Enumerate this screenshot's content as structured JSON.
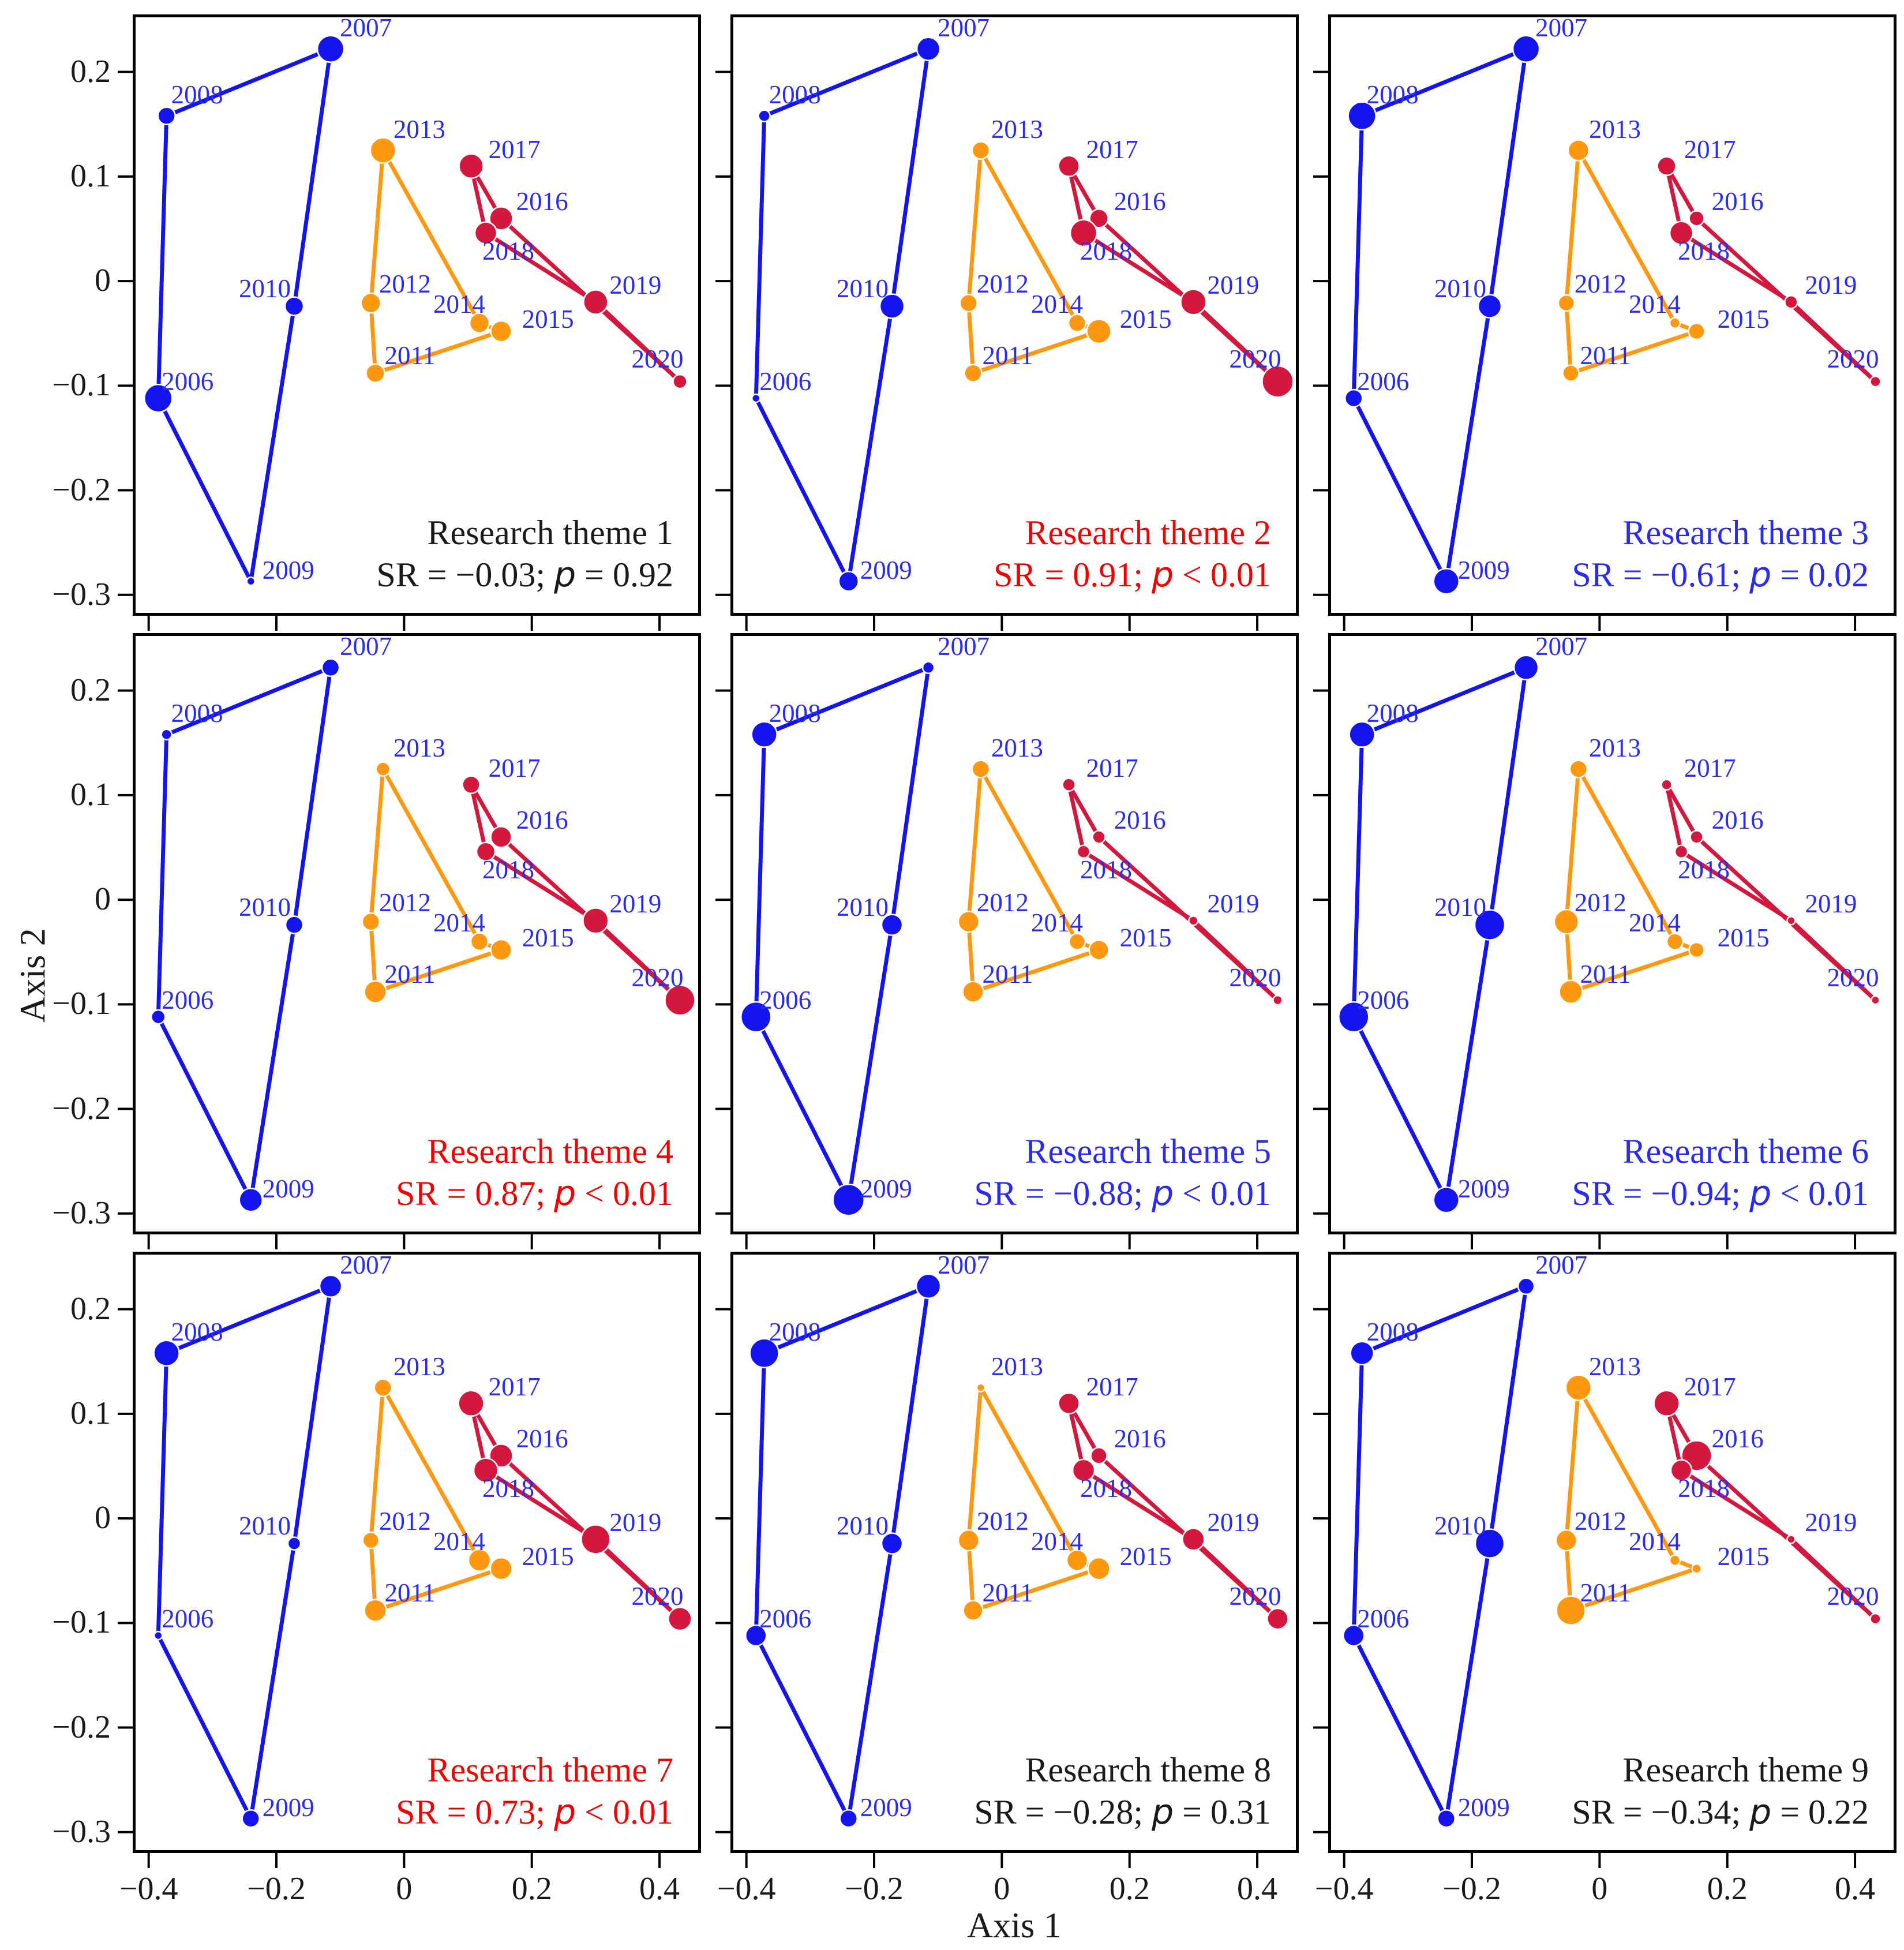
{
  "figure": {
    "xlabel": "Axis 1",
    "ylabel": "Axis 2"
  },
  "chart_data": {
    "type": "scatter",
    "xlabel": "Axis 1",
    "ylabel": "Axis 2",
    "xlim": [
      -0.425,
      0.465
    ],
    "ylim": [
      -0.32,
      0.255
    ],
    "grid": false,
    "xticks": [
      {
        "v": -0.4,
        "label": "−0.4"
      },
      {
        "v": -0.2,
        "label": "−0.2"
      },
      {
        "v": 0,
        "label": "0"
      },
      {
        "v": 0.2,
        "label": "0.2"
      },
      {
        "v": 0.4,
        "label": "0.4"
      }
    ],
    "yticks": [
      {
        "v": 0.2,
        "label": "0.2"
      },
      {
        "v": 0.1,
        "label": "0.1"
      },
      {
        "v": 0,
        "label": "0"
      },
      {
        "v": -0.1,
        "label": "−0.1"
      },
      {
        "v": -0.2,
        "label": "−0.2"
      },
      {
        "v": -0.3,
        "label": "−0.3"
      }
    ],
    "years": [
      "2006",
      "2007",
      "2008",
      "2009",
      "2010",
      "2011",
      "2012",
      "2013",
      "2014",
      "2015",
      "2016",
      "2017",
      "2018",
      "2019",
      "2020"
    ],
    "points": {
      "2006": {
        "x": -0.385,
        "y": -0.112,
        "group": "blue"
      },
      "2007": {
        "x": -0.115,
        "y": 0.222,
        "group": "blue"
      },
      "2008": {
        "x": -0.372,
        "y": 0.158,
        "group": "blue"
      },
      "2009": {
        "x": -0.24,
        "y": -0.287,
        "group": "blue"
      },
      "2010": {
        "x": -0.172,
        "y": -0.024,
        "group": "blue"
      },
      "2011": {
        "x": -0.045,
        "y": -0.088,
        "group": "orange"
      },
      "2012": {
        "x": -0.052,
        "y": -0.021,
        "group": "orange"
      },
      "2013": {
        "x": -0.033,
        "y": 0.125,
        "group": "orange"
      },
      "2014": {
        "x": 0.118,
        "y": -0.04,
        "group": "orange"
      },
      "2015": {
        "x": 0.152,
        "y": -0.048,
        "group": "orange"
      },
      "2016": {
        "x": 0.152,
        "y": 0.06,
        "group": "red"
      },
      "2017": {
        "x": 0.105,
        "y": 0.11,
        "group": "red"
      },
      "2018": {
        "x": 0.128,
        "y": 0.046,
        "group": "red"
      },
      "2019": {
        "x": 0.3,
        "y": -0.02,
        "group": "red"
      },
      "2020": {
        "x": 0.432,
        "y": -0.096,
        "group": "red"
      }
    },
    "edges": [
      [
        "2007",
        "2008"
      ],
      [
        "2008",
        "2006"
      ],
      [
        "2006",
        "2009"
      ],
      [
        "2009",
        "2010"
      ],
      [
        "2010",
        "2007"
      ],
      [
        "2011",
        "2012"
      ],
      [
        "2012",
        "2013"
      ],
      [
        "2013",
        "2014"
      ],
      [
        "2014",
        "2015"
      ],
      [
        "2015",
        "2011"
      ],
      [
        "2016",
        "2017"
      ],
      [
        "2017",
        "2018"
      ],
      [
        "2018",
        "2019"
      ],
      [
        "2019",
        "2020"
      ],
      [
        "2020",
        "2016"
      ]
    ],
    "group_colors": {
      "blue": "#1414ee",
      "orange": "#ff9811",
      "red": "#d4173c"
    },
    "year_label_color": "#2a2af5",
    "panels": [
      {
        "title": "Research theme 1",
        "sr_text": "SR = −0.03; ",
        "p_symbol": "p",
        "p_text": " = 0.92",
        "color": "#1a1a1a",
        "sizes": {
          "2006": 48,
          "2007": 46,
          "2008": 30,
          "2009": 14,
          "2010": 32,
          "2011": 32,
          "2012": 34,
          "2013": 44,
          "2014": 34,
          "2015": 36,
          "2016": 40,
          "2017": 42,
          "2018": 38,
          "2019": 42,
          "2020": 24
        }
      },
      {
        "title": "Research theme 2",
        "sr_text": "SR = 0.91; ",
        "p_symbol": "p",
        "p_text": " < 0.01",
        "color": "#f40000",
        "sizes": {
          "2006": 14,
          "2007": 40,
          "2008": 20,
          "2009": 34,
          "2010": 42,
          "2011": 30,
          "2012": 30,
          "2013": 30,
          "2014": 30,
          "2015": 42,
          "2016": 32,
          "2017": 36,
          "2018": 46,
          "2019": 44,
          "2020": 54
        }
      },
      {
        "title": "Research theme 3",
        "sr_text": "SR = −0.61; ",
        "p_symbol": "p",
        "p_text": " = 0.02",
        "color": "#2a2af5",
        "sizes": {
          "2006": 30,
          "2007": 46,
          "2008": 48,
          "2009": 44,
          "2010": 40,
          "2011": 28,
          "2012": 28,
          "2013": 36,
          "2014": 18,
          "2015": 28,
          "2016": 26,
          "2017": 32,
          "2018": 40,
          "2019": 22,
          "2020": 18
        }
      },
      {
        "title": "Research theme 4",
        "sr_text": "SR = 0.87; ",
        "p_symbol": "p",
        "p_text": " < 0.01",
        "color": "#f40000",
        "sizes": {
          "2006": 24,
          "2007": 30,
          "2008": 18,
          "2009": 40,
          "2010": 30,
          "2011": 38,
          "2012": 30,
          "2013": 24,
          "2014": 30,
          "2015": 36,
          "2016": 36,
          "2017": 30,
          "2018": 32,
          "2019": 44,
          "2020": 52
        }
      },
      {
        "title": "Research theme 5",
        "sr_text": "SR = −0.88; ",
        "p_symbol": "p",
        "p_text": " < 0.01",
        "color": "#2a2af5",
        "sizes": {
          "2006": 52,
          "2007": 20,
          "2008": 44,
          "2009": 54,
          "2010": 36,
          "2011": 36,
          "2012": 36,
          "2013": 30,
          "2014": 28,
          "2015": 34,
          "2016": 22,
          "2017": 22,
          "2018": 22,
          "2019": 16,
          "2020": 16
        }
      },
      {
        "title": "Research theme 6",
        "sr_text": "SR = −0.94; ",
        "p_symbol": "p",
        "p_text": " < 0.01",
        "color": "#2a2af5",
        "sizes": {
          "2006": 52,
          "2007": 42,
          "2008": 44,
          "2009": 44,
          "2010": 52,
          "2011": 40,
          "2012": 42,
          "2013": 30,
          "2014": 28,
          "2015": 26,
          "2016": 22,
          "2017": 18,
          "2018": 22,
          "2019": 14,
          "2020": 14
        }
      },
      {
        "title": "Research theme 7",
        "sr_text": "SR = 0.73; ",
        "p_symbol": "p",
        "p_text": " < 0.01",
        "color": "#f40000",
        "sizes": {
          "2006": 14,
          "2007": 38,
          "2008": 44,
          "2009": 30,
          "2010": 22,
          "2011": 38,
          "2012": 28,
          "2013": 30,
          "2014": 38,
          "2015": 38,
          "2016": 40,
          "2017": 44,
          "2018": 42,
          "2019": 50,
          "2020": 40
        }
      },
      {
        "title": "Research theme 8",
        "sr_text": "SR = −0.28; ",
        "p_symbol": "p",
        "p_text": " = 0.31",
        "color": "#1a1a1a",
        "sizes": {
          "2006": 36,
          "2007": 42,
          "2008": 50,
          "2009": 30,
          "2010": 36,
          "2011": 34,
          "2012": 36,
          "2013": 14,
          "2014": 36,
          "2015": 38,
          "2016": 28,
          "2017": 36,
          "2018": 38,
          "2019": 38,
          "2020": 36
        }
      },
      {
        "title": "Research theme 9",
        "sr_text": "SR = −0.34; ",
        "p_symbol": "p",
        "p_text": " = 0.22",
        "color": "#1a1a1a",
        "sizes": {
          "2006": 36,
          "2007": 28,
          "2008": 40,
          "2009": 30,
          "2010": 50,
          "2011": 50,
          "2012": 36,
          "2013": 44,
          "2014": 18,
          "2015": 16,
          "2016": 52,
          "2017": 44,
          "2018": 36,
          "2019": 14,
          "2020": 18
        }
      }
    ]
  }
}
